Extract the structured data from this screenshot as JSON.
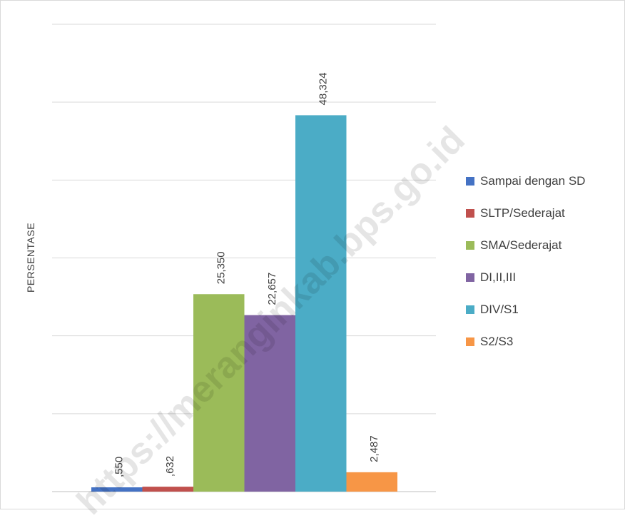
{
  "chart_data": {
    "type": "bar",
    "title": "",
    "xlabel": "",
    "ylabel": "PERSENTASE",
    "ylim": [
      0,
      60
    ],
    "grid": true,
    "legend_position": "right",
    "series": [
      {
        "name": "Sampai dengan SD",
        "value": 0.55,
        "label": ",550",
        "color": "#4472C4"
      },
      {
        "name": "SLTP/Sederajat",
        "value": 0.632,
        "label": ",632",
        "color": "#C0504D"
      },
      {
        "name": "SMA/Sederajat",
        "value": 25.35,
        "label": "25,350",
        "color": "#9BBB59"
      },
      {
        "name": "DI,II,III",
        "value": 22.657,
        "label": "22,657",
        "color": "#8064A2"
      },
      {
        "name": "DIV/S1",
        "value": 48.324,
        "label": "48,324",
        "color": "#4BACC6"
      },
      {
        "name": "S2/S3",
        "value": 2.487,
        "label": "2,487",
        "color": "#F79646"
      }
    ]
  },
  "watermark": "https://meranginkab.bps.go.id"
}
